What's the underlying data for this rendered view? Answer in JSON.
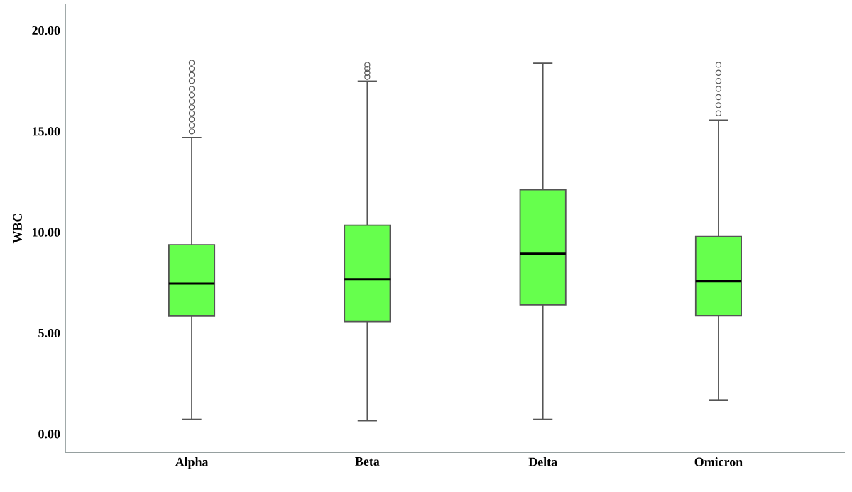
{
  "chart_data": {
    "type": "box",
    "ylabel": "WBC",
    "categories": [
      "Alpha",
      "Beta",
      "Delta",
      "Omicron"
    ],
    "color": "#66ff4d",
    "ylim": [
      -0.9,
      21.3
    ],
    "yticks": [
      {
        "value": 0,
        "label": "0.00"
      },
      {
        "value": 5,
        "label": "5.00"
      },
      {
        "value": 10,
        "label": "10.00"
      },
      {
        "value": 15,
        "label": "15.00"
      },
      {
        "value": 20,
        "label": "20.00"
      }
    ],
    "boxes": [
      {
        "low": 0.73,
        "q1": 5.85,
        "median": 7.46,
        "q3": 9.39,
        "high": 14.7,
        "outliers": [
          15.0,
          15.3,
          15.6,
          15.9,
          16.2,
          16.5,
          16.8,
          17.1,
          17.5,
          17.8,
          18.1,
          18.4
        ]
      },
      {
        "low": 0.66,
        "q1": 5.58,
        "median": 7.68,
        "q3": 10.35,
        "high": 17.49,
        "outliers": [
          17.7,
          17.9,
          18.1,
          18.3
        ]
      },
      {
        "low": 0.73,
        "q1": 6.41,
        "median": 8.94,
        "q3": 12.11,
        "high": 18.38
      },
      {
        "low": 1.69,
        "q1": 5.87,
        "median": 7.58,
        "q3": 9.79,
        "high": 15.56,
        "outliers": [
          15.9,
          16.3,
          16.7,
          17.1,
          17.5,
          17.9,
          18.3
        ]
      }
    ]
  }
}
